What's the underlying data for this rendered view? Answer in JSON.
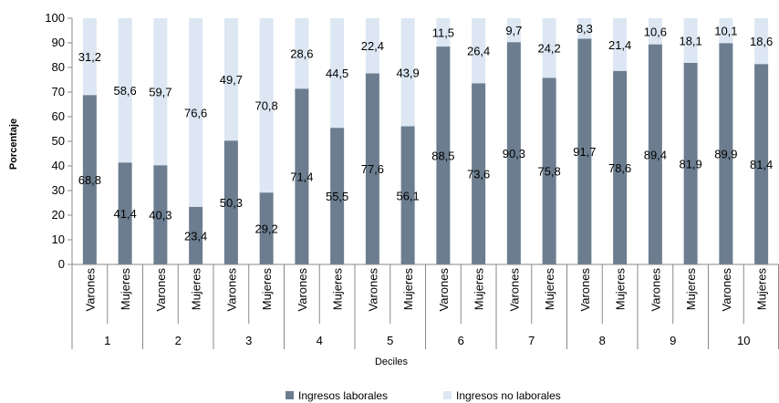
{
  "chart_data": {
    "type": "bar",
    "stacked": true,
    "ylabel": "Porcentaje",
    "xlabel": "Deciles",
    "ylim": [
      0,
      100
    ],
    "yticks": [
      0,
      10,
      20,
      30,
      40,
      50,
      60,
      70,
      80,
      90,
      100
    ],
    "grid": false,
    "legend_position": "bottom",
    "groups": [
      "1",
      "2",
      "3",
      "4",
      "5",
      "6",
      "7",
      "8",
      "9",
      "10"
    ],
    "subcategories": [
      "Varones",
      "Mujeres"
    ],
    "series": [
      {
        "name": "Ingresos laborales",
        "color": "#6b7d8f",
        "values": [
          68.8,
          41.4,
          40.3,
          23.4,
          50.3,
          29.2,
          71.4,
          55.5,
          77.6,
          56.1,
          88.5,
          73.6,
          90.3,
          75.8,
          91.7,
          78.6,
          89.4,
          81.9,
          89.9,
          81.4
        ],
        "labels": [
          "68,8",
          "41,4",
          "40,3",
          "23,4",
          "50,3",
          "29,2",
          "71,4",
          "55,5",
          "77,6",
          "56,1",
          "88,5",
          "73,6",
          "90,3",
          "75,8",
          "91,7",
          "78,6",
          "89,4",
          "81,9",
          "89,9",
          "81,4"
        ]
      },
      {
        "name": "Ingresos no laborales",
        "color": "#dce7f3",
        "values": [
          31.2,
          58.6,
          59.7,
          76.6,
          49.7,
          70.8,
          28.6,
          44.5,
          22.4,
          43.9,
          11.5,
          26.4,
          9.7,
          24.2,
          8.3,
          21.4,
          10.6,
          18.1,
          10.1,
          18.6
        ],
        "labels": [
          "31,2",
          "58,6",
          "59,7",
          "76,6",
          "49,7",
          "70,8",
          "28,6",
          "44,5",
          "22,4",
          "43,9",
          "11,5",
          "26,4",
          "9,7",
          "24,2",
          "8,3",
          "21,4",
          "10,6",
          "18,1",
          "10,1",
          "18,6"
        ]
      }
    ]
  }
}
